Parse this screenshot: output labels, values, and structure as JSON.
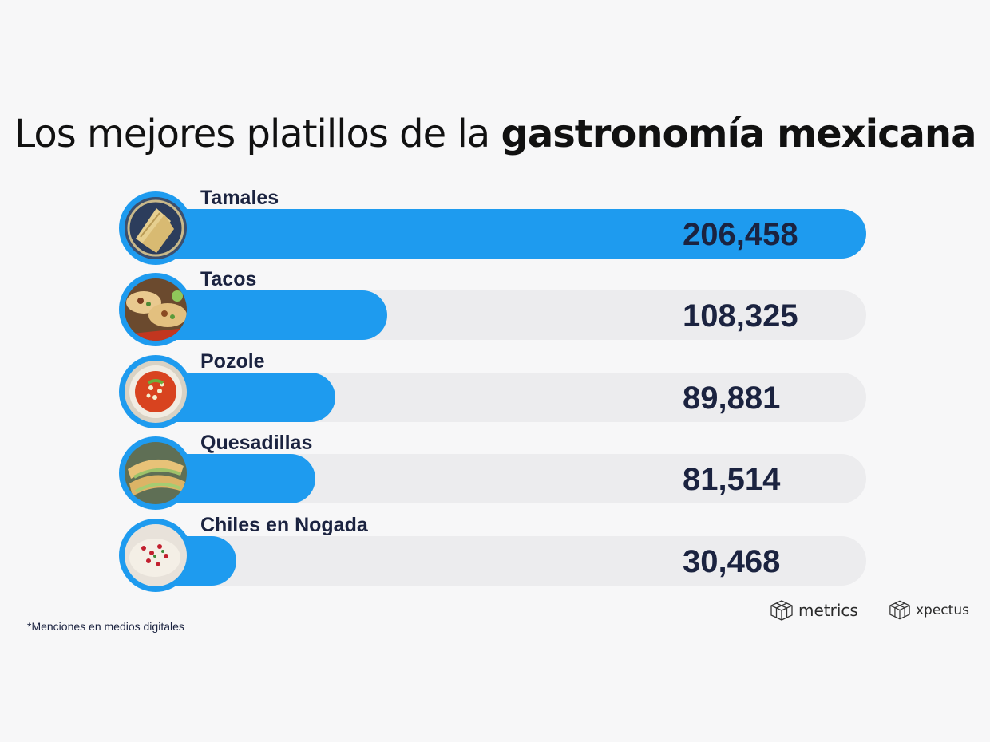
{
  "title": {
    "regular": "Los mejores platillos de la ",
    "bold": "gastronomía mexicana"
  },
  "footnote": "*Menciones en medios digitales",
  "logos": {
    "left": "metrics",
    "right": "xpectus"
  },
  "colors": {
    "bar": "#1e9bef",
    "track": "#ececee",
    "text": "#1b2340"
  },
  "chart_data": {
    "type": "bar",
    "orientation": "horizontal",
    "title": "Los mejores platillos de la gastronomía mexicana",
    "categories": [
      "Tamales",
      "Tacos",
      "Pozole",
      "Quesadillas",
      "Chiles en Nogada"
    ],
    "values": [
      206458,
      108325,
      89881,
      81514,
      30468
    ],
    "value_labels": [
      "206,458",
      "108,325",
      "89,881",
      "81,514",
      "30,468"
    ],
    "icons": [
      "tamales-photo-icon",
      "tacos-photo-icon",
      "pozole-photo-icon",
      "quesadillas-photo-icon",
      "chiles-en-nogada-photo-icon"
    ],
    "xlabel": "",
    "ylabel": "",
    "legend": "none",
    "grid": false
  }
}
